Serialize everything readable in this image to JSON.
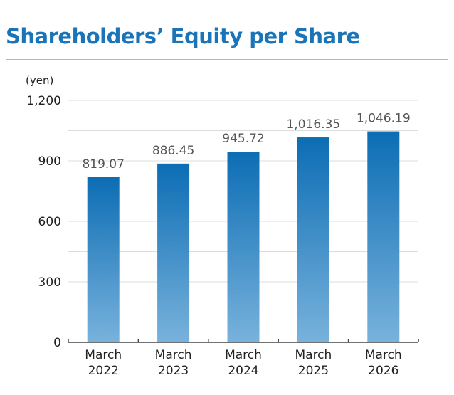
{
  "title": "Shareholders’ Equity per Share",
  "chart_data": {
    "type": "bar",
    "unit": "(yen)",
    "categories": [
      [
        "March",
        "2022"
      ],
      [
        "March",
        "2023"
      ],
      [
        "March",
        "2024"
      ],
      [
        "March",
        "2025"
      ],
      [
        "March",
        "2026"
      ]
    ],
    "values": [
      819.07,
      886.45,
      945.72,
      1016.35,
      1046.19
    ],
    "value_labels": [
      "819.07",
      "886.45",
      "945.72",
      "1,016.35",
      "1,046.19"
    ],
    "ylim": [
      0,
      1200
    ],
    "yticks": [
      {
        "value": 0,
        "label": "0"
      },
      {
        "value": 300,
        "label": "300"
      },
      {
        "value": 600,
        "label": "600"
      },
      {
        "value": 900,
        "label": "900"
      },
      {
        "value": 1200,
        "label": "1,200"
      }
    ],
    "grid": true,
    "colors": {
      "bar_top": "#0c6db4",
      "bar_bottom": "#78b2dc",
      "grid": "#dcdcdc",
      "axis": "#444444"
    }
  }
}
